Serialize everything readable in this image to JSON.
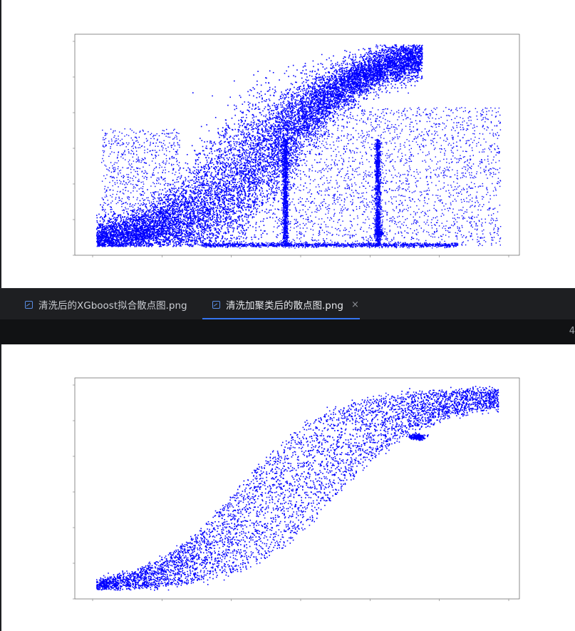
{
  "tabs": [
    {
      "label": "清洗后的XGboost拟合散点图.png",
      "icon": "image-file-icon",
      "active": false
    },
    {
      "label": "清洗加聚类后的散点图.png",
      "icon": "image-file-icon",
      "active": true,
      "close": "×"
    }
  ],
  "info_bar": {
    "text": "4"
  },
  "colors": {
    "points": "#0000ff",
    "accent": "#3574f0",
    "background": "#1e1f22"
  },
  "chart_data": [
    {
      "type": "scatter",
      "series": [
        {
          "color": "#0000ff"
        }
      ],
      "legend": false,
      "grid": false
    },
    {
      "type": "scatter",
      "series": [
        {
          "color": "#0000ff"
        }
      ],
      "legend": false,
      "grid": false
    }
  ]
}
